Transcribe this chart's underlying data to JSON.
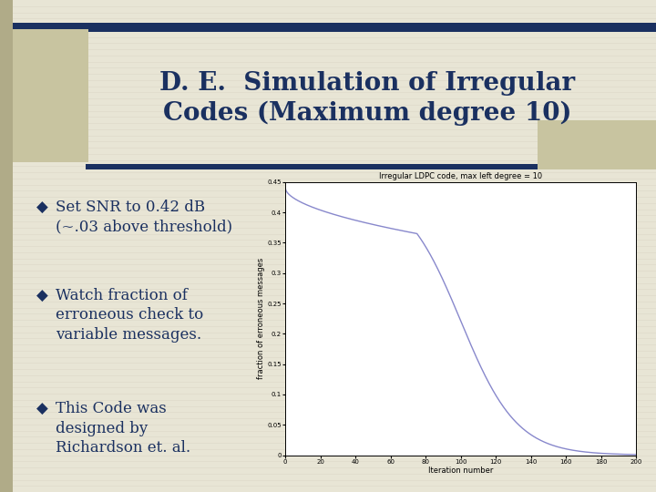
{
  "title_line1": "D. E.  Simulation of Irregular",
  "title_line2": "Codes (Maximum degree 10)",
  "title_color": "#1a3060",
  "slide_bg": "#e8e5d5",
  "stripe_bg": "#dedad0",
  "left_block_color": "#c8c4a0",
  "top_bar_color": "#1a3060",
  "tr_block_color": "#c8c4a0",
  "bullet_symbol": "◆",
  "bullet_color": "#1a3060",
  "text_color": "#1a3060",
  "bullets": [
    "Set SNR to 0.42 dB\n(~.03 above threshold)",
    "Watch fraction of\nerroneous check to\nvariable messages.",
    "This Code was\ndesigned by\nRichardson et. al."
  ],
  "plot_title": "Irregular LDPC code, max left degree = 10",
  "plot_xlabel": "Iteration number",
  "plot_ylabel": "fraction of erroneous messages",
  "plot_xlim": [
    0,
    200
  ],
  "plot_ylim": [
    0,
    0.45
  ],
  "plot_xticks": [
    0,
    20,
    40,
    60,
    80,
    100,
    120,
    140,
    160,
    180,
    200
  ],
  "plot_ytick_labels": [
    "0",
    "0.05",
    "0.1",
    "0.15",
    "0.2",
    "0.25",
    "0.3",
    "0.35",
    "0.4",
    "0.45"
  ],
  "plot_yticks": [
    0,
    0.05,
    0.1,
    0.15,
    0.2,
    0.25,
    0.3,
    0.35,
    0.4,
    0.45
  ],
  "curve_color": "#8888cc",
  "title_fontsize": 20,
  "bullet_fontsize": 12,
  "plot_title_fontsize": 6,
  "plot_label_fontsize": 6,
  "plot_tick_fontsize": 5
}
